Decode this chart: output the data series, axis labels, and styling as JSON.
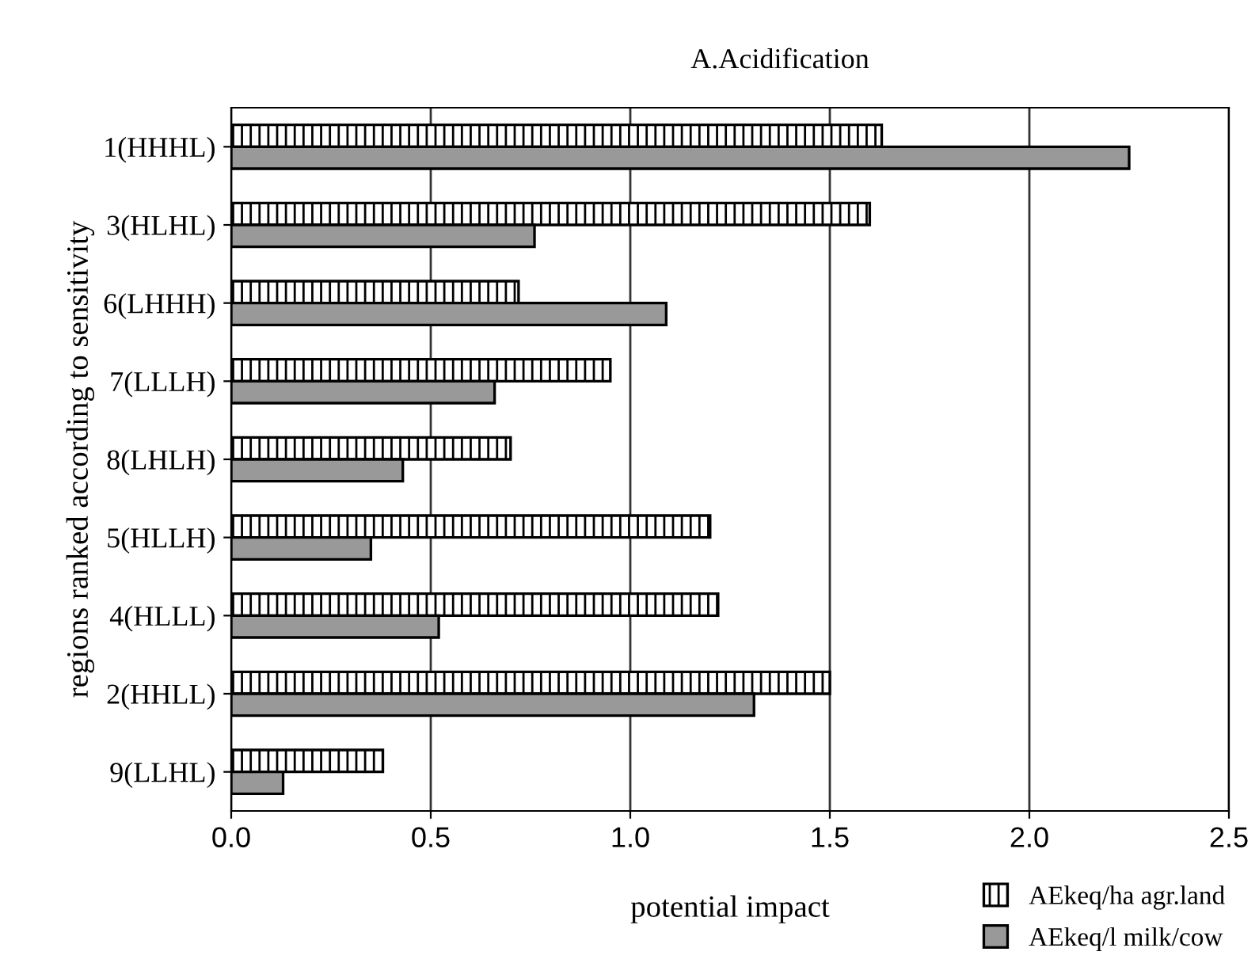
{
  "chart_data": {
    "type": "bar",
    "orientation": "horizontal",
    "title": "A.Acidification",
    "xlabel": "potential impact",
    "ylabel": "regions ranked according to sensitivity",
    "categories": [
      "1(HHHL)",
      "3(HLHL)",
      "6(LHHH)",
      "7(LLLH)",
      "8(LHLH)",
      "5(HLLH)",
      "4(HLLL)",
      "2(HHLL)",
      "9(LLHL)"
    ],
    "series": [
      {
        "name": "AEkeq/ha agr.land",
        "color": "#000000",
        "values": [
          1.63,
          1.6,
          0.72,
          0.95,
          0.7,
          1.2,
          1.22,
          1.5,
          0.38
        ]
      },
      {
        "name": "AEkeq/l milk/cow",
        "color": "#999999",
        "values": [
          2.25,
          0.76,
          1.09,
          0.66,
          0.43,
          0.35,
          0.52,
          1.31,
          0.13
        ]
      }
    ],
    "xlim": [
      0,
      2.5
    ],
    "xticks": [
      {
        "value": 0,
        "label": "0.0"
      },
      {
        "value": 0.5,
        "label": "0.5"
      },
      {
        "value": 1,
        "label": "1.0"
      },
      {
        "value": 1.5,
        "label": "1.5"
      },
      {
        "value": 2,
        "label": "2.0"
      },
      {
        "value": 2.5,
        "label": "2.5"
      }
    ],
    "grid": "x",
    "legend": "bottom right"
  }
}
